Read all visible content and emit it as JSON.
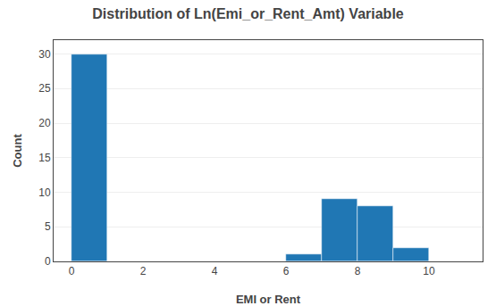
{
  "chart_data": {
    "type": "histogram",
    "title": "Distribution of Ln(Emi_or_Rent_Amt) Variable",
    "xlabel": "EMI or Rent",
    "ylabel": "Count",
    "bins": [
      0.0,
      1.0,
      2.0,
      3.0,
      4.0,
      5.0,
      6.0,
      7.0,
      8.0,
      9.0,
      10.0,
      11.0
    ],
    "values": [
      30,
      0,
      0,
      0,
      0,
      0,
      1,
      9,
      8,
      2,
      0
    ],
    "color": "#2077b4",
    "xlim": [
      -0.5,
      11.5
    ],
    "xticks": [
      0,
      2,
      4,
      6,
      8,
      10
    ],
    "ylim": [
      0,
      32
    ],
    "yticks": [
      0,
      5,
      10,
      15,
      20,
      25,
      30
    ],
    "grid": true
  }
}
